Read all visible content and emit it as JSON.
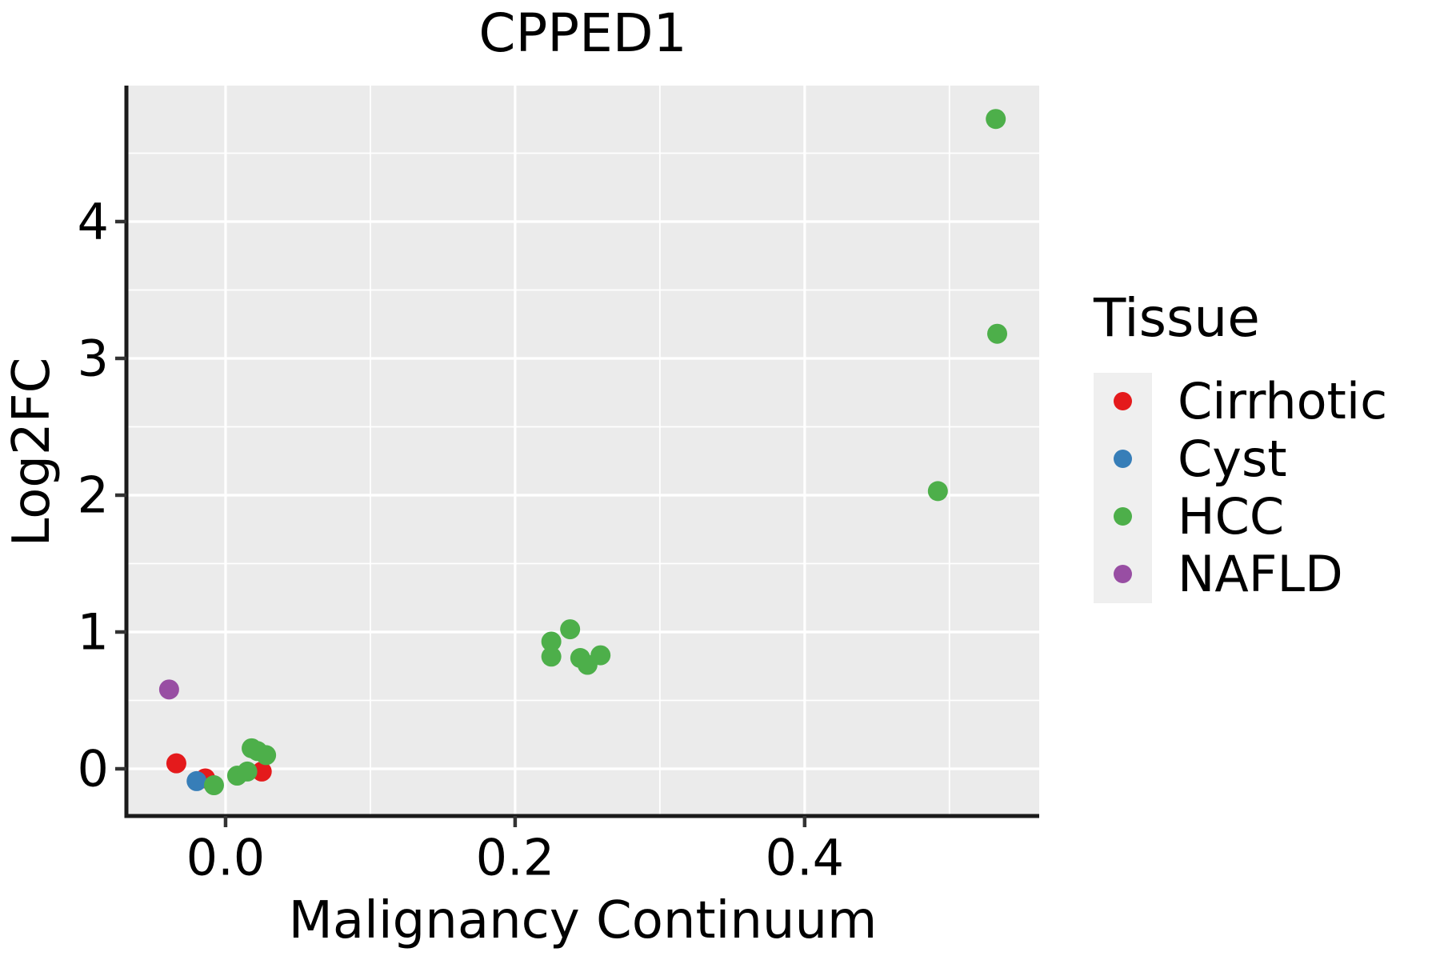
{
  "title": "CPPED1",
  "axes": {
    "x_label": "Malignancy Continuum",
    "y_label": "Log2FC",
    "x_ticks": [
      0.0,
      0.2,
      0.4
    ],
    "x_tick_labels": [
      "0.0",
      "0.2",
      "0.4"
    ],
    "y_ticks": [
      0,
      1,
      2,
      3,
      4
    ],
    "y_tick_labels": [
      "0",
      "1",
      "2",
      "3",
      "4"
    ],
    "x_minor_ticks": [
      0.1,
      0.3,
      0.5
    ],
    "y_minor_ticks": [
      0.5,
      1.5,
      2.5,
      3.5,
      4.5
    ],
    "x_range": [
      -0.0685,
      0.562
    ],
    "y_range": [
      -0.345,
      4.994
    ]
  },
  "legend": {
    "title": "Tissue",
    "items": [
      {
        "label": "Cirrhotic",
        "color": "#E41A1C"
      },
      {
        "label": "Cyst",
        "color": "#377EB8"
      },
      {
        "label": "HCC",
        "color": "#4DAF4A"
      },
      {
        "label": "NAFLD",
        "color": "#984EA3"
      }
    ]
  },
  "chart_data": {
    "type": "scatter",
    "title": "CPPED1",
    "xlabel": "Malignancy Continuum",
    "ylabel": "Log2FC",
    "xlim": [
      -0.0685,
      0.562
    ],
    "ylim": [
      -0.345,
      4.994
    ],
    "grid": "on",
    "legend_position": "right",
    "series": [
      {
        "name": "Cirrhotic",
        "color": "#E41A1C",
        "points": [
          [
            -0.034,
            0.04
          ],
          [
            -0.014,
            -0.07
          ],
          [
            0.025,
            -0.02
          ]
        ]
      },
      {
        "name": "Cyst",
        "color": "#377EB8",
        "points": [
          [
            -0.02,
            -0.09
          ]
        ]
      },
      {
        "name": "HCC",
        "color": "#4DAF4A",
        "points": [
          [
            -0.008,
            -0.12
          ],
          [
            0.008,
            -0.05
          ],
          [
            0.015,
            -0.02
          ],
          [
            0.018,
            0.15
          ],
          [
            0.022,
            0.13
          ],
          [
            0.028,
            0.1
          ],
          [
            0.225,
            0.93
          ],
          [
            0.225,
            0.82
          ],
          [
            0.238,
            1.02
          ],
          [
            0.245,
            0.81
          ],
          [
            0.25,
            0.76
          ],
          [
            0.259,
            0.83
          ],
          [
            0.492,
            2.03
          ],
          [
            0.532,
            4.75
          ],
          [
            0.533,
            3.18
          ]
        ]
      },
      {
        "name": "NAFLD",
        "color": "#984EA3",
        "points": [
          [
            -0.039,
            0.58
          ]
        ]
      }
    ]
  },
  "style": {
    "panel_bg": "#EBEBEB",
    "grid_color": "#FFFFFF",
    "spine_color": "#1A1A1A",
    "tick_color": "#333333",
    "text_color": "#000000",
    "legend_key_bg": "#EFEFEF",
    "point_radius": 12.5
  }
}
